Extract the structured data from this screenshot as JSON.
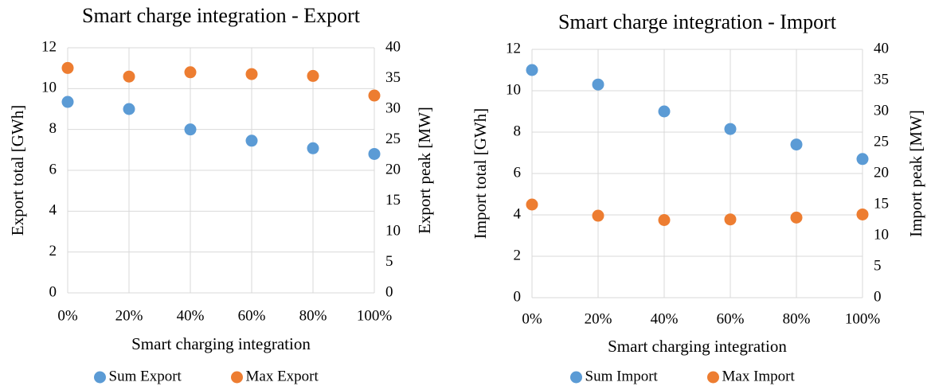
{
  "chart_data": [
    {
      "type": "scatter",
      "title": "Smart charge integration - Export",
      "x_label": "Smart charging integration",
      "y_label": "Export total [GWh]",
      "y2_label": "Export peak [MW]",
      "categories": [
        "0%",
        "20%",
        "40%",
        "60%",
        "80%",
        "100%"
      ],
      "series": [
        {
          "name": "Sum Export",
          "color": "#5b9bd5",
          "values": [
            9.35,
            9.0,
            8.0,
            7.45,
            7.08,
            6.8
          ]
        },
        {
          "name": "Max Export",
          "color": "#ed7d31",
          "axis": "y2",
          "values": [
            36.7,
            35.3,
            36.0,
            35.7,
            35.4,
            32.2
          ]
        }
      ],
      "ylim": [
        0,
        12
      ],
      "yticks": [
        0,
        2,
        4,
        6,
        8,
        10,
        12
      ],
      "y2lim": [
        0,
        40
      ],
      "y2ticks": [
        0,
        5,
        10,
        15,
        20,
        25,
        30,
        35,
        40
      ],
      "grid": true,
      "legend": "bottom"
    },
    {
      "type": "scatter",
      "title": "Smart charge integration - Import",
      "x_label": "Smart charging integration",
      "y_label": "Import total [GWh]",
      "y2_label": "Import peak [MW]",
      "categories": [
        "0%",
        "20%",
        "40%",
        "60%",
        "80%",
        "100%"
      ],
      "series": [
        {
          "name": "Sum Import",
          "color": "#5b9bd5",
          "values": [
            11.0,
            10.3,
            9.0,
            8.15,
            7.4,
            6.7
          ]
        },
        {
          "name": "Max Import",
          "color": "#ed7d31",
          "axis": "y2",
          "values": [
            15.0,
            13.2,
            12.5,
            12.6,
            12.9,
            13.4
          ]
        }
      ],
      "ylim": [
        0,
        12
      ],
      "yticks": [
        0,
        2,
        4,
        6,
        8,
        10,
        12
      ],
      "y2lim": [
        0,
        40
      ],
      "y2ticks": [
        0,
        5,
        10,
        15,
        20,
        25,
        30,
        35,
        40
      ],
      "grid": true,
      "legend": "bottom"
    }
  ]
}
